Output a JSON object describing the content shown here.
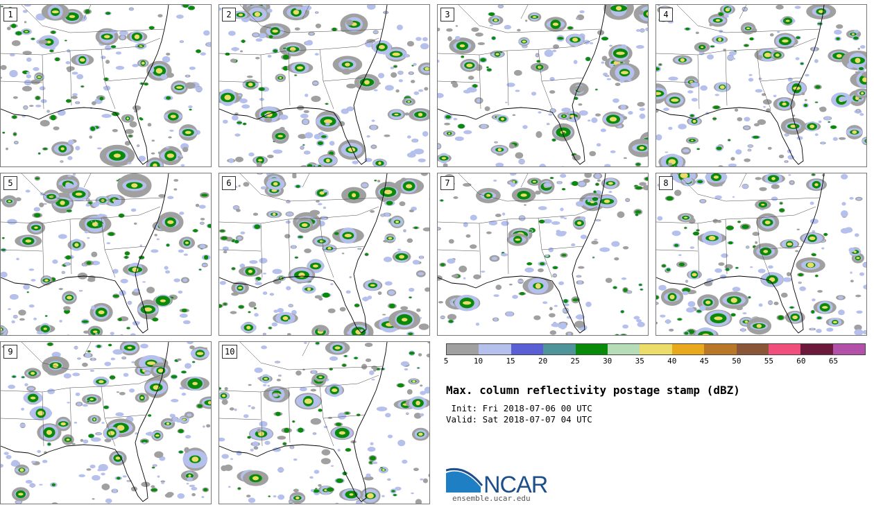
{
  "panels": [
    {
      "label": "1",
      "seed": 11
    },
    {
      "label": "2",
      "seed": 23
    },
    {
      "label": "3",
      "seed": 37
    },
    {
      "label": "4",
      "seed": 41
    },
    {
      "label": "5",
      "seed": 53
    },
    {
      "label": "6",
      "seed": 67
    },
    {
      "label": "7",
      "seed": 71
    },
    {
      "label": "8",
      "seed": 83
    },
    {
      "label": "9",
      "seed": 97
    },
    {
      "label": "10",
      "seed": 101
    }
  ],
  "legend": {
    "colors": [
      "#a0a0a0",
      "#b6c0ec",
      "#5a5fd6",
      "#4f9499",
      "#0a8a0a",
      "#b7dcb8",
      "#ecdc6a",
      "#e9a91d",
      "#b9772a",
      "#8a5638",
      "#ef4f7a",
      "#6b1a3b",
      "#b350a8"
    ],
    "ticks": [
      "5",
      "10",
      "15",
      "20",
      "25",
      "30",
      "35",
      "40",
      "45",
      "50",
      "55",
      "60",
      "65"
    ]
  },
  "title": "Max. column reflectivity postage stamp (dBZ)",
  "init": " Init: Fri 2018-07-06 00 UTC",
  "valid": "Valid: Sat 2018-07-07 04 UTC",
  "logo": {
    "text": "NCAR",
    "site": "ensemble.ucar.edu"
  }
}
